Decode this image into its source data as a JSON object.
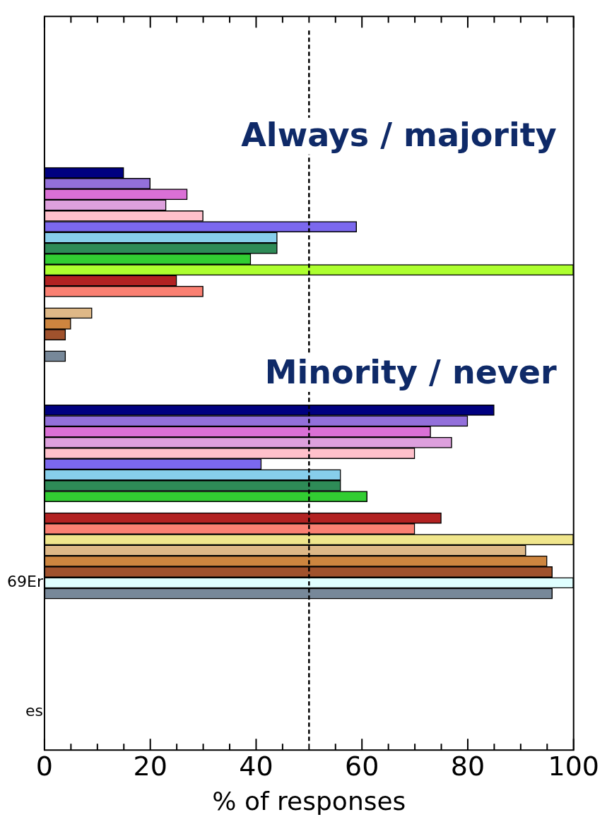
{
  "chart_data": {
    "type": "bar",
    "orientation": "horizontal",
    "xlabel": "% of responses",
    "categories": [
      null,
      null,
      null,
      null,
      null,
      null,
      null,
      null,
      null,
      null,
      null,
      null,
      null,
      null,
      null,
      null,
      null,
      null,
      null,
      null,
      null,
      null,
      null,
      null,
      null,
      null,
      null,
      null,
      null,
      null,
      null,
      null,
      null,
      null,
      null,
      null,
      null,
      null,
      null,
      null,
      null,
      null,
      null,
      null,
      null,
      null,
      null,
      null,
      null,
      null,
      null,
      null,
      "69Er",
      null,
      null,
      null,
      null,
      null,
      null,
      null,
      null,
      null,
      null,
      null,
      "es",
      null,
      null,
      null
    ],
    "values": [
      null,
      null,
      null,
      null,
      null,
      null,
      null,
      null,
      null,
      null,
      null,
      null,
      null,
      null,
      15,
      20,
      27,
      23,
      30,
      59,
      44,
      44,
      39,
      100,
      25,
      30,
      0,
      9,
      5,
      4,
      0,
      4,
      null,
      null,
      null,
      null,
      85,
      80,
      73,
      77,
      70,
      41,
      56,
      56,
      61,
      0,
      75,
      70,
      100,
      91,
      95,
      96,
      100,
      96,
      null,
      null,
      null,
      null,
      null,
      null,
      null,
      null,
      null,
      null,
      null,
      null,
      null,
      null
    ],
    "colors": [
      null,
      null,
      null,
      null,
      null,
      null,
      null,
      null,
      null,
      null,
      null,
      null,
      null,
      null,
      "#000080",
      "#9370db",
      "#da70d6",
      "#dda0dd",
      "#ffc0cb",
      "#7b68ee",
      "#87ceeb",
      "#2e8b57",
      "#32cd32",
      "#adff2f",
      "#b22222",
      "#fa8072",
      "#f0e68c",
      "#deb887",
      "#cd853f",
      "#a0522d",
      "#e0ffff",
      "#778899",
      null,
      null,
      null,
      null,
      "#000080",
      "#9370db",
      "#da70d6",
      "#dda0dd",
      "#ffc0cb",
      "#7b68ee",
      "#87ceeb",
      "#2e8b57",
      "#32cd32",
      "#adff2f",
      "#b22222",
      "#fa8072",
      "#f0e68c",
      "#deb887",
      "#cd853f",
      "#a0522d",
      "#e0ffff",
      "#778899",
      null,
      null,
      null,
      null,
      null,
      null,
      null,
      null,
      null,
      null,
      null,
      null,
      null,
      null
    ],
    "xlim": [
      0,
      100
    ],
    "xticks": [
      0,
      {
        "value": 5,
        "label": null
      },
      {
        "value": 10,
        "label": null
      },
      {
        "value": 15,
        "label": null
      },
      20,
      {
        "value": 25,
        "label": null
      },
      {
        "value": 30,
        "label": null
      },
      {
        "value": 35,
        "label": null
      },
      40,
      {
        "value": 45,
        "label": null
      },
      {
        "value": 50,
        "label": null
      },
      {
        "value": 55,
        "label": null
      },
      60,
      {
        "value": 65,
        "label": null
      },
      {
        "value": 70,
        "label": null
      },
      {
        "value": 75,
        "label": null
      },
      80,
      {
        "value": 85,
        "label": null
      },
      {
        "value": 90,
        "label": null
      },
      {
        "value": 95,
        "label": null
      },
      100
    ],
    "ref_lines": [
      {
        "axis": "x",
        "value": 50,
        "line_style": "dashed",
        "color": "#000000"
      }
    ],
    "annotations": [
      "Always / majority",
      "Minority / never"
    ],
    "grid": false,
    "legend": false
  }
}
